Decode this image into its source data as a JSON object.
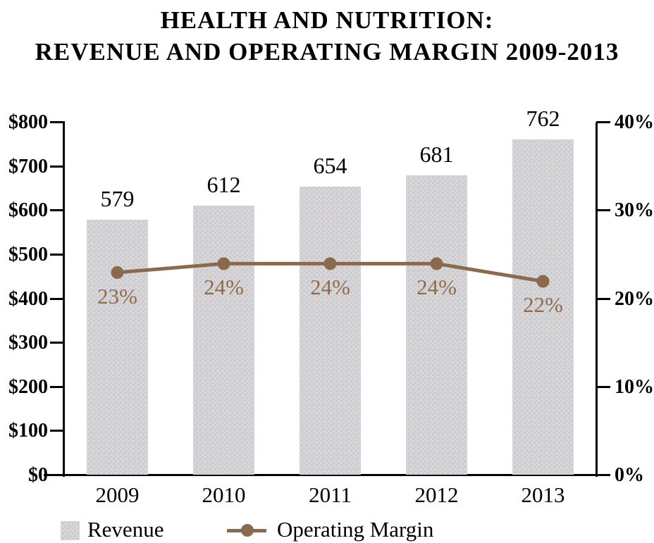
{
  "title": {
    "line1": "HEALTH AND NUTRITION:",
    "line2": "REVENUE AND OPERATING MARGIN 2009-2013"
  },
  "chart_data": {
    "type": "bar",
    "subtype": "bar-line-combo",
    "title": "HEALTH AND NUTRITION: REVENUE AND OPERATING MARGIN 2009-2013",
    "categories": [
      "2009",
      "2010",
      "2011",
      "2012",
      "2013"
    ],
    "series": [
      {
        "name": "Revenue",
        "chart_type": "bar",
        "axis": "left",
        "values": [
          579,
          612,
          654,
          681,
          762
        ],
        "data_labels": [
          "579",
          "612",
          "654",
          "681",
          "762"
        ]
      },
      {
        "name": "Operating Margin",
        "chart_type": "line",
        "axis": "right",
        "values": [
          23,
          24,
          24,
          24,
          22
        ],
        "data_labels": [
          "23%",
          "24%",
          "24%",
          "24%",
          "22%"
        ]
      }
    ],
    "left_axis": {
      "min": 0,
      "max": 800,
      "tick_step": 100,
      "tick_labels": [
        "$0",
        "$100",
        "$200",
        "$300",
        "$400",
        "$500",
        "$600",
        "$700",
        "$800"
      ]
    },
    "right_axis": {
      "min": 0,
      "max": 40,
      "tick_step": 10,
      "tick_labels": [
        "0%",
        "10%",
        "20%",
        "30%",
        "40%"
      ]
    },
    "grid": "off",
    "legend_position": "bottom"
  },
  "legend": {
    "revenue_label": "Revenue",
    "operating_margin_label": "Operating Margin"
  },
  "colors": {
    "bar_fill": "#d6d6d8",
    "line_brown": "#8a6a4c",
    "pct_label_brown": "#8f6b4a",
    "axis_black": "#000000"
  }
}
